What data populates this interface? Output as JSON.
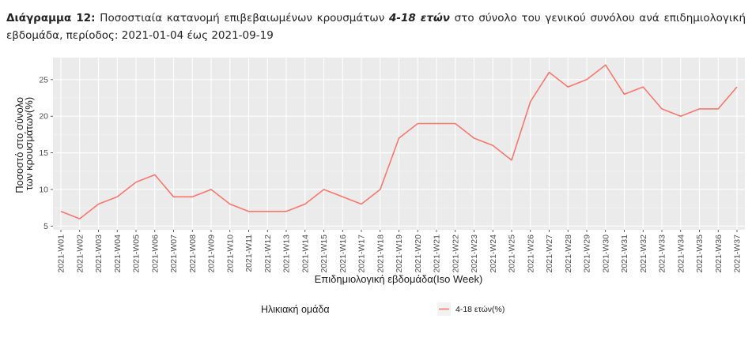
{
  "caption": {
    "label": "Διάγραμμα 12",
    "colon": ":",
    "text_a": " Ποσοστιαία κατανομή επιβεβαιωμένων κρουσμάτων ",
    "bold_group": "4-18 ετών",
    "text_b": " στο σύνολο του γενικού συνόλου ανά επιδημιολογική εβδομάδα, περίοδος: 2021-01-04 έως 2021-09-19"
  },
  "chart_data": {
    "type": "line",
    "title": "",
    "xlabel": "Επιδημιολογική εβδομάδα(Iso Week)",
    "ylabel_lines": [
      "Ποσοστό στο σύνολο",
      "των κρουσμάτων(%)"
    ],
    "ylim": [
      4.5,
      28
    ],
    "yticks": [
      5,
      10,
      15,
      20,
      25
    ],
    "grid": true,
    "legend": {
      "title": "Ηλικιακή ομάδα",
      "position": "bottom"
    },
    "categories": [
      "2021-W01",
      "2021-W02",
      "2021-W03",
      "2021-W04",
      "2021-W05",
      "2021-W06",
      "2021-W07",
      "2021-W08",
      "2021-W09",
      "2021-W10",
      "2021-W11",
      "2021-W12",
      "2021-W13",
      "2021-W14",
      "2021-W15",
      "2021-W16",
      "2021-W17",
      "2021-W18",
      "2021-W19",
      "2021-W20",
      "2021-W21",
      "2021-W22",
      "2021-W23",
      "2021-W24",
      "2021-W25",
      "2021-W26",
      "2021-W27",
      "2021-W28",
      "2021-W29",
      "2021-W30",
      "2021-W31",
      "2021-W32",
      "2021-W33",
      "2021-W34",
      "2021-W35",
      "2021-W36",
      "2021-W37"
    ],
    "series": [
      {
        "name": "4-18 ετών(%)",
        "color": "#f8766d",
        "values": [
          7,
          6,
          8,
          9,
          11,
          12,
          9,
          9,
          10,
          8,
          7,
          7,
          7,
          8,
          10,
          9,
          8,
          10,
          17,
          19,
          19,
          19,
          17,
          16,
          14,
          22,
          26,
          24,
          25,
          27,
          23,
          24,
          21,
          20,
          21,
          21,
          24
        ]
      }
    ]
  }
}
